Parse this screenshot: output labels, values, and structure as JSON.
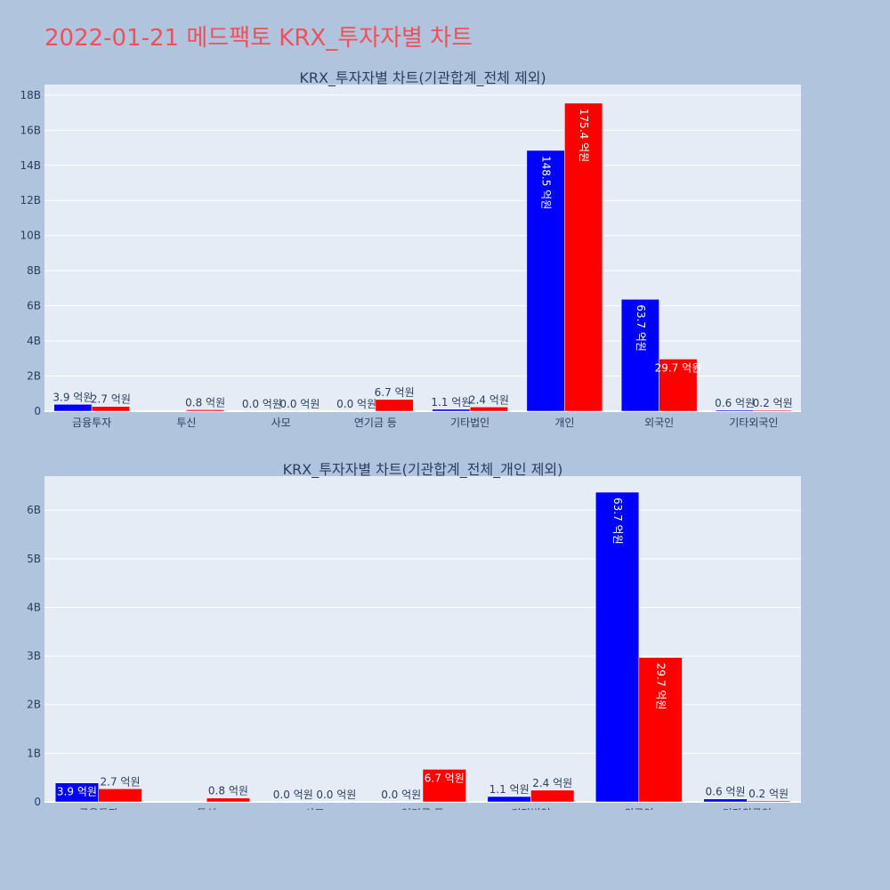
{
  "page": {
    "title": "2022-01-21 메드팩토 KRX_투자자별 차트"
  },
  "colors": {
    "buy": "#0000ff",
    "sell": "#ff0000",
    "plot_bg": "#e5ecf6",
    "page_bg": "#b0c4de"
  },
  "chart_data": [
    {
      "type": "bar",
      "title": "KRX_투자자별 차트(기관합계_전체 제외)",
      "categories": [
        "금융투자",
        "투신",
        "사모",
        "연기금 등",
        "기타법인",
        "개인",
        "외국인",
        "기타외국인"
      ],
      "series": [
        {
          "values": [
            0.39,
            0.0,
            0.0,
            0.0,
            0.11,
            14.85,
            6.37,
            0.06
          ],
          "labels": [
            "3.9 억원",
            "",
            "0.0 억원",
            "0.0 억원",
            "1.1 억원",
            "148.5 억원",
            "63.7 억원",
            "0.6 억원"
          ]
        },
        {
          "values": [
            0.27,
            0.08,
            0.0,
            0.67,
            0.24,
            17.54,
            2.97,
            0.02
          ],
          "labels": [
            "2.7 억원",
            "0.8 억원",
            "0.0 억원",
            "6.7 억원",
            "2.4 억원",
            "175.4 억원",
            "29.7 억원",
            "0.2 억원"
          ]
        }
      ],
      "yticks": [
        "0",
        "2B",
        "4B",
        "6B",
        "8B",
        "10B",
        "12B",
        "14B",
        "16B",
        "18B"
      ],
      "ylim": [
        0,
        18.6
      ],
      "grid": true
    },
    {
      "type": "bar",
      "title": "KRX_투자자별 차트(기관합계_전체_개인 제외)",
      "categories": [
        "금융투자",
        "투신",
        "사모",
        "연기금 등",
        "기타법인",
        "외국인",
        "기타외국인"
      ],
      "series": [
        {
          "values": [
            0.39,
            0.0,
            0.0,
            0.0,
            0.11,
            6.37,
            0.06
          ],
          "labels": [
            "3.9 억원",
            "",
            "0.0 억원",
            "0.0 억원",
            "1.1 억원",
            "63.7 억원",
            "0.6 억원"
          ]
        },
        {
          "values": [
            0.27,
            0.08,
            0.0,
            0.67,
            0.24,
            2.97,
            0.02
          ],
          "labels": [
            "2.7 억원",
            "0.8 억원",
            "0.0 억원",
            "6.7 억원",
            "2.4 억원",
            "29.7 억원",
            "0.2 억원"
          ]
        }
      ],
      "yticks": [
        "0",
        "1B",
        "2B",
        "3B",
        "4B",
        "5B",
        "6B"
      ],
      "ylim": [
        0,
        6.7
      ],
      "grid": true
    }
  ]
}
